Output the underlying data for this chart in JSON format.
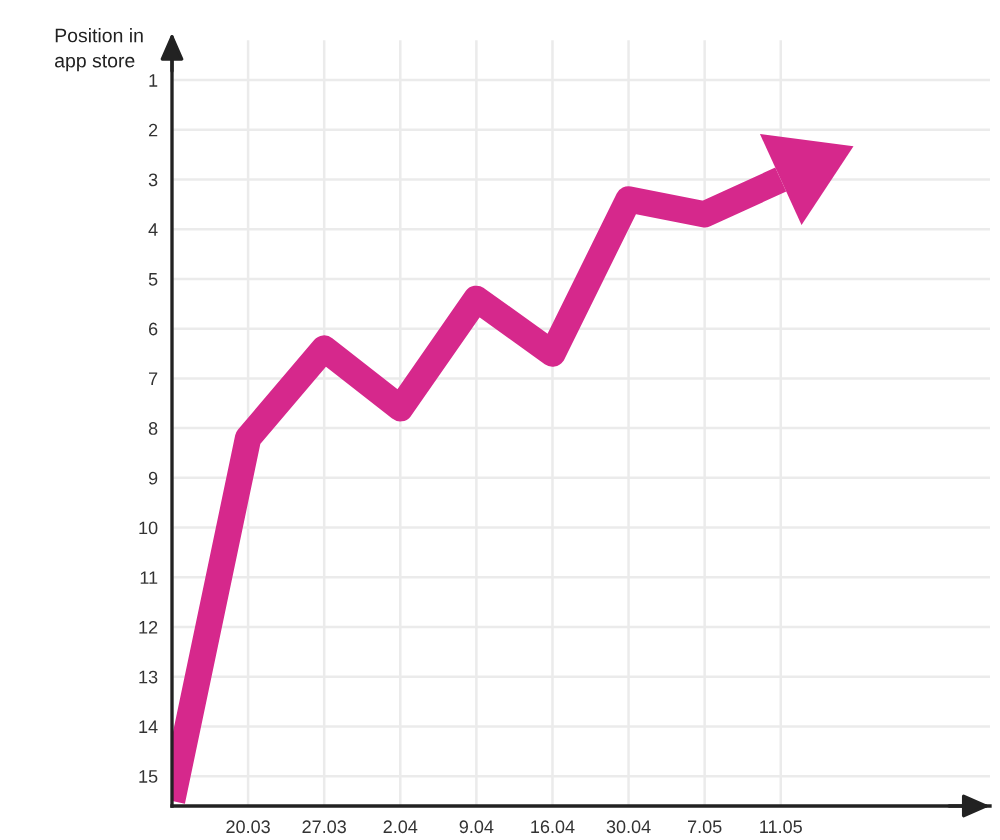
{
  "chart_data": {
    "type": "line",
    "ylabel": "Position in app store",
    "categories": [
      null,
      "20.03",
      "27.03",
      "2.04",
      "9.04",
      "16.04",
      "30.04",
      "7.05",
      "11.05"
    ],
    "ylim": [
      15.6,
      0.2
    ],
    "yticks": [
      1,
      2,
      3,
      4,
      5,
      6,
      7,
      8,
      9,
      10,
      11,
      12,
      13,
      14,
      15
    ],
    "series": [
      {
        "color": "#d6288c",
        "values": [
          15.5,
          8.2,
          6.4,
          7.6,
          5.4,
          6.5,
          3.4,
          3.7,
          3.0
        ]
      }
    ],
    "grid": true
  }
}
